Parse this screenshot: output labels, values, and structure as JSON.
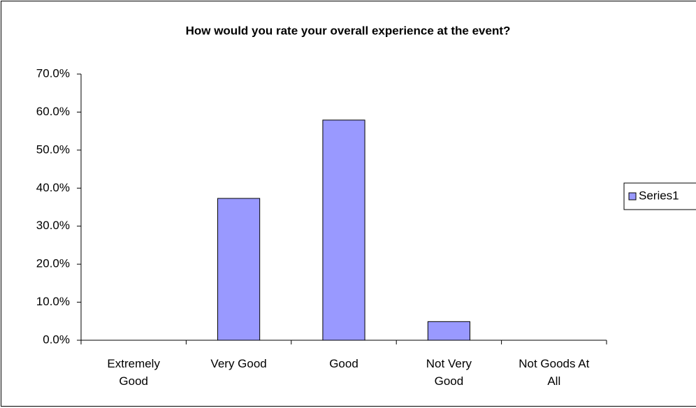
{
  "chart_data": {
    "type": "bar",
    "title": "How would you rate your overall experience at the event?",
    "categories": [
      "Extremely Good",
      "Very Good",
      "Good",
      "Not Very Good",
      "Not Goods At All"
    ],
    "series": [
      {
        "name": "Series1",
        "color": "#9999ff",
        "values": [
          0,
          37.3,
          57.9,
          4.9,
          0
        ]
      }
    ],
    "ylim": [
      0,
      70
    ],
    "yticks": [
      {
        "value": 0,
        "label": "0.0%"
      },
      {
        "value": 10,
        "label": "10.0%"
      },
      {
        "value": 20,
        "label": "20.0%"
      },
      {
        "value": 30,
        "label": "30.0%"
      },
      {
        "value": 40,
        "label": "40.0%"
      },
      {
        "value": 50,
        "label": "50.0%"
      },
      {
        "value": 60,
        "label": "60.0%"
      },
      {
        "value": 70,
        "label": "70.0%"
      }
    ],
    "grid": false,
    "legend": "right"
  }
}
